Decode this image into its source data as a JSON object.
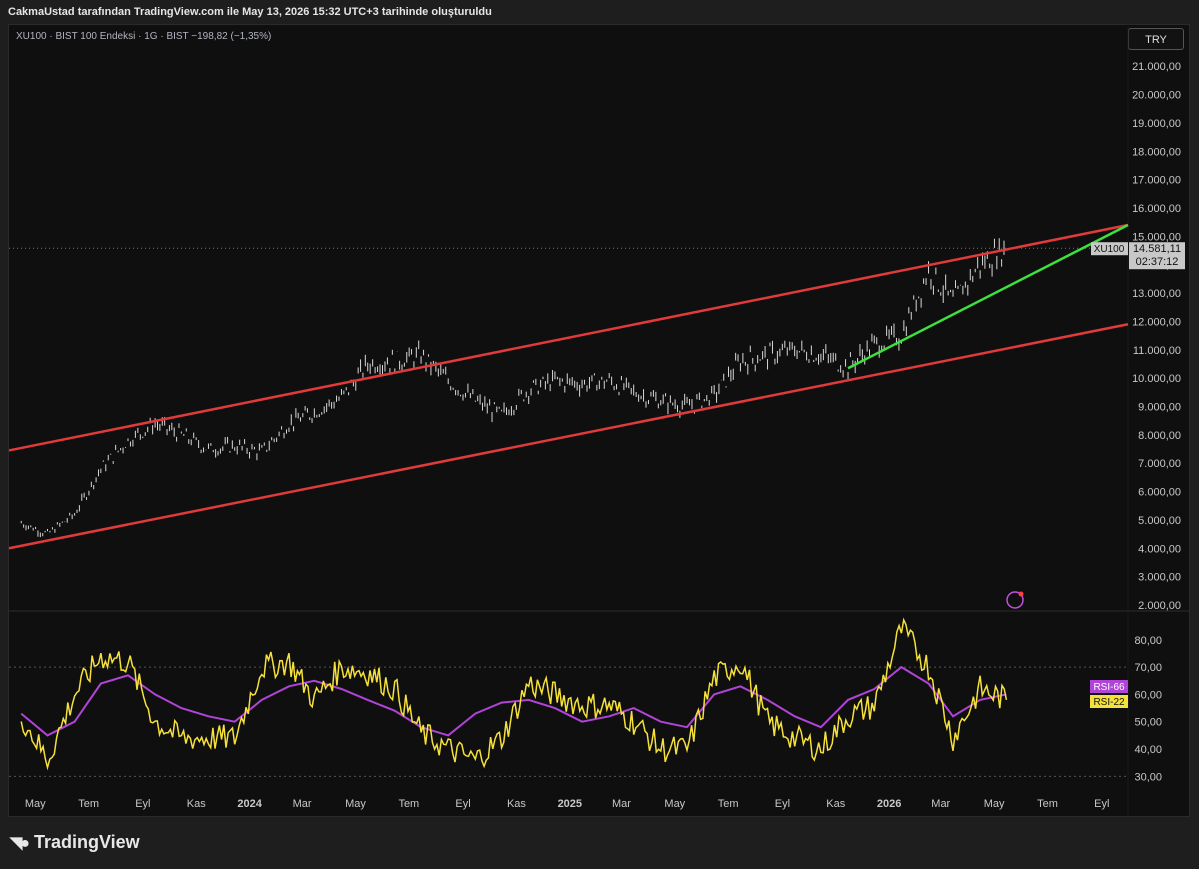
{
  "attribution": "CakmaUstad tarafından TradingView.com ile May 13, 2026 15:32 UTC+3 tarihinde oluşturuldu",
  "legend": {
    "symbol": "XU100 · BIST 100 Endeksi · 1G · BIST",
    "change": "−198,82 (−1,35%)"
  },
  "currency": "TRY",
  "footer_brand": "TradingView",
  "colors": {
    "channel": "#e03a3a",
    "trend": "#3ee03e",
    "rsi_fast": "#f5e13a",
    "rsi_slow": "#b044d8",
    "price_label": "#c8c8c8"
  },
  "chart_data": [
    {
      "type": "candlestick",
      "symbol": "XU100",
      "yscale": "linear",
      "ylim": [
        2000,
        21500
      ],
      "ytick_labels": [
        "21.000,00",
        "20.000,00",
        "19.000,00",
        "18.000,00",
        "17.000,00",
        "16.000,00",
        "15.000,00",
        "14.000,00",
        "13.000,00",
        "12.000,00",
        "11.000,00",
        "10.000,00",
        "9.000,00",
        "8.000,00",
        "7.000,00",
        "6.000,00",
        "5.000,00",
        "4.000,00",
        "3.000,00",
        "2.000,00"
      ],
      "yticks": [
        21000,
        20000,
        19000,
        18000,
        17000,
        16000,
        15000,
        14000,
        13000,
        12000,
        11000,
        10000,
        9000,
        8000,
        7000,
        6000,
        5000,
        4000,
        3000,
        2000
      ],
      "xtick_labels": [
        "May",
        "Tem",
        "Eyl",
        "Kas",
        "2024",
        "Mar",
        "May",
        "Tem",
        "Eyl",
        "Kas",
        "2025",
        "Mar",
        "May",
        "Tem",
        "Eyl",
        "Kas",
        "2026",
        "Mar",
        "May",
        "Tem",
        "Eyl"
      ],
      "xticks": [
        "2023-05",
        "2023-07",
        "2023-09",
        "2023-11",
        "2024-01",
        "2024-03",
        "2024-05",
        "2024-07",
        "2024-09",
        "2024-11",
        "2025-01",
        "2025-03",
        "2025-05",
        "2025-07",
        "2025-09",
        "2025-11",
        "2026-01",
        "2026-03",
        "2026-05",
        "2026-07",
        "2026-09"
      ],
      "last_price": {
        "symbol": "XU100",
        "value": "14.581,11",
        "countdown": "02:37:12"
      },
      "series": {
        "x": [
          "2023-04",
          "2023-05",
          "2023-06",
          "2023-07",
          "2023-08",
          "2023-09",
          "2023-10",
          "2023-11",
          "2023-12",
          "2024-01",
          "2024-02",
          "2024-03",
          "2024-04",
          "2024-05",
          "2024-06",
          "2024-07",
          "2024-08",
          "2024-09",
          "2024-10",
          "2024-11",
          "2024-12",
          "2025-01",
          "2025-02",
          "2025-03",
          "2025-04",
          "2025-05",
          "2025-06",
          "2025-07",
          "2025-08",
          "2025-09",
          "2025-10",
          "2025-11",
          "2025-12",
          "2026-01",
          "2026-02",
          "2026-03",
          "2026-04",
          "2026-05"
        ],
        "close": [
          4900,
          4500,
          5200,
          6800,
          7800,
          8400,
          8000,
          7500,
          7600,
          7400,
          8400,
          8800,
          9300,
          10500,
          10600,
          10800,
          9900,
          9200,
          8700,
          9600,
          9900,
          9800,
          9900,
          9500,
          9200,
          9000,
          9400,
          10600,
          10800,
          11000,
          10800,
          10400,
          11200,
          11500,
          13800,
          12700,
          14000,
          14581
        ]
      },
      "lines": [
        {
          "name": "upper-channel",
          "color": "#e03a3a",
          "from": [
            "2023-04-01",
            7450
          ],
          "to": [
            "2026-10-01",
            15400
          ]
        },
        {
          "name": "lower-channel",
          "color": "#e03a3a",
          "from": [
            "2023-04-01",
            4000
          ],
          "to": [
            "2026-10-01",
            11900
          ]
        },
        {
          "name": "support-trend",
          "color": "#3ee03e",
          "from": [
            "2025-11-15",
            10350
          ],
          "to": [
            "2026-10-01",
            15400
          ]
        }
      ]
    },
    {
      "type": "line",
      "indicator": "RSI",
      "ylim": [
        25,
        88
      ],
      "ytick_labels": [
        "80,00",
        "70,00",
        "60,00",
        "50,00",
        "40,00",
        "30,00"
      ],
      "yticks": [
        80,
        70,
        60,
        50,
        40,
        30
      ],
      "levels": [
        70,
        30
      ],
      "series": [
        {
          "name": "RSI-66",
          "color": "#b044d8",
          "values": [
            53,
            45,
            50,
            64,
            67,
            60,
            55,
            52,
            50,
            58,
            63,
            65,
            62,
            58,
            54,
            48,
            45,
            53,
            57,
            58,
            55,
            50,
            52,
            55,
            50,
            48,
            60,
            63,
            58,
            52,
            48,
            58,
            62,
            70,
            64,
            52,
            58,
            60
          ]
        },
        {
          "name": "RSI-22",
          "color": "#f5e13a",
          "values": [
            52,
            36,
            60,
            74,
            72,
            50,
            44,
            44,
            44,
            70,
            72,
            58,
            70,
            68,
            62,
            46,
            40,
            36,
            44,
            64,
            60,
            56,
            56,
            50,
            40,
            40,
            66,
            72,
            50,
            44,
            40,
            52,
            56,
            84,
            70,
            44,
            62,
            58
          ]
        }
      ]
    }
  ]
}
